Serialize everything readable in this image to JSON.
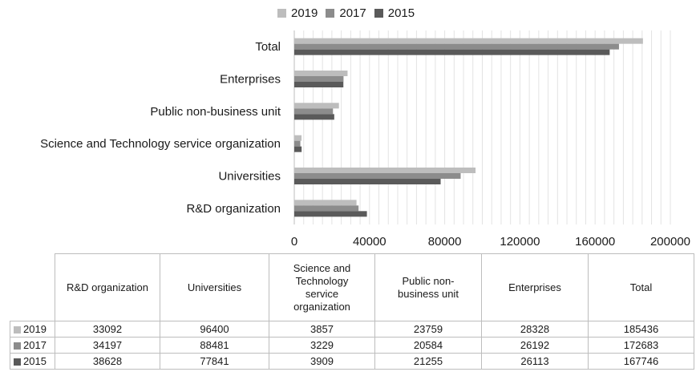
{
  "chart_data": {
    "type": "bar",
    "orientation": "horizontal",
    "categories": [
      "R&D organization",
      "Universities",
      "Science and Technology service organization",
      "Public non-business unit",
      "Enterprises",
      "Total"
    ],
    "series": [
      {
        "name": "2019",
        "color": "#bdbdbd",
        "values": [
          33092,
          96400,
          3857,
          23759,
          28328,
          185436
        ]
      },
      {
        "name": "2017",
        "color": "#8c8c8c",
        "values": [
          34197,
          88481,
          3229,
          20584,
          26192,
          172683
        ]
      },
      {
        "name": "2015",
        "color": "#5a5a5a",
        "values": [
          38628,
          77841,
          3909,
          21255,
          26113,
          167746
        ]
      }
    ],
    "xlim": [
      0,
      200000
    ],
    "xticks": [
      "0",
      "40000",
      "80000",
      "120000",
      "160000",
      "200000"
    ],
    "grid": "vertical",
    "legend_position": "top"
  },
  "table": {
    "headers": [
      "R&D organization",
      "Universities",
      "Science and Technology service organization",
      "Public non-business unit",
      "Enterprises",
      "Total"
    ],
    "header_lines": [
      [
        "R&D organization"
      ],
      [
        "Universities"
      ],
      [
        "Science and",
        "Technology",
        "service",
        "organization"
      ],
      [
        "Public non-",
        "business unit"
      ],
      [
        "Enterprises"
      ],
      [
        "Total"
      ]
    ],
    "rows": [
      {
        "label": "2019",
        "color": "#bdbdbd",
        "cells": [
          "33092",
          "96400",
          "3857",
          "23759",
          "28328",
          "185436"
        ]
      },
      {
        "label": "2017",
        "color": "#8c8c8c",
        "cells": [
          "34197",
          "88481",
          "3229",
          "20584",
          "26192",
          "172683"
        ]
      },
      {
        "label": "2015",
        "color": "#5a5a5a",
        "cells": [
          "38628",
          "77841",
          "3909",
          "21255",
          "26113",
          "167746"
        ]
      }
    ]
  }
}
